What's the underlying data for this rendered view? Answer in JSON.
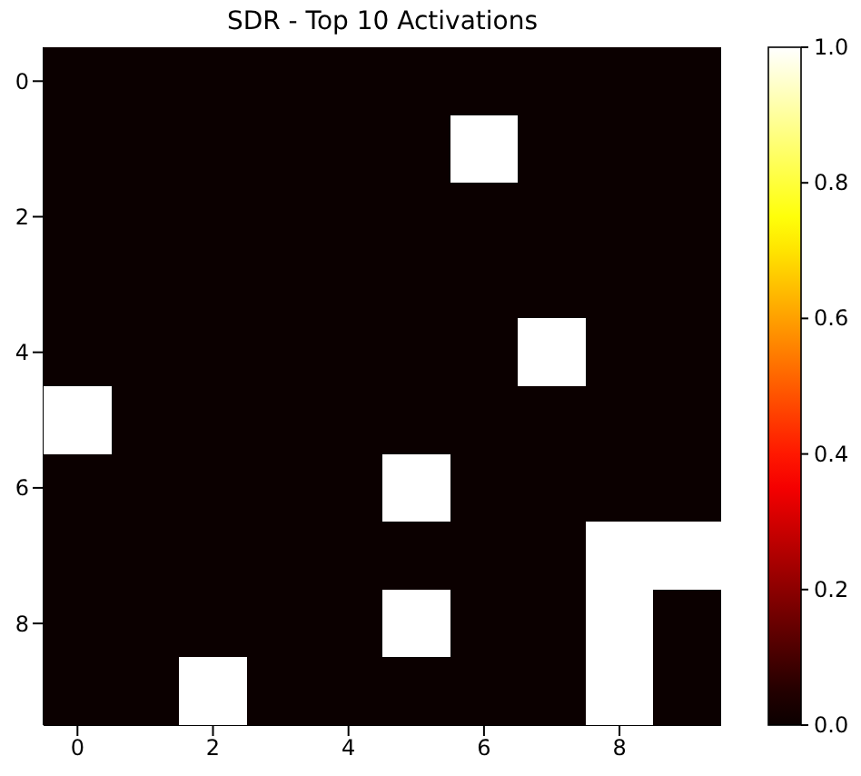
{
  "chart_data": {
    "type": "heatmap",
    "title": "SDR - Top 10 Activations",
    "categories": [
      "0",
      null,
      "2",
      null,
      "4",
      null,
      "6",
      null,
      "8",
      null
    ],
    "y_categories": [
      "0",
      null,
      "2",
      null,
      "4",
      null,
      "6",
      null,
      "8",
      null
    ],
    "cells": [
      [
        0,
        0,
        0,
        0,
        0,
        0,
        0,
        0,
        0,
        0
      ],
      [
        0,
        0,
        0,
        0,
        0,
        0,
        1,
        0,
        0,
        0
      ],
      [
        0,
        0,
        0,
        0,
        0,
        0,
        0,
        0,
        0,
        0
      ],
      [
        0,
        0,
        0,
        0,
        0,
        0,
        0,
        0,
        0,
        0
      ],
      [
        0,
        0,
        0,
        0,
        0,
        0,
        0,
        1,
        0,
        0
      ],
      [
        1,
        0,
        0,
        0,
        0,
        0,
        0,
        0,
        0,
        0
      ],
      [
        0,
        0,
        0,
        0,
        0,
        1,
        0,
        0,
        0,
        0
      ],
      [
        0,
        0,
        0,
        0,
        0,
        0,
        0,
        0,
        1,
        1
      ],
      [
        0,
        0,
        0,
        0,
        0,
        1,
        0,
        0,
        1,
        0
      ],
      [
        0,
        0,
        1,
        0,
        0,
        0,
        0,
        0,
        1,
        0
      ]
    ],
    "clim": [
      0,
      1
    ],
    "cticks": [
      {
        "value": 0,
        "label": "0.0"
      },
      {
        "value": 0.2,
        "label": "0.2"
      },
      {
        "value": 0.4,
        "label": "0.4"
      },
      {
        "value": 0.6,
        "label": "0.6"
      },
      {
        "value": 0.8,
        "label": "0.8"
      },
      {
        "value": 1,
        "label": "1.0"
      }
    ]
  }
}
